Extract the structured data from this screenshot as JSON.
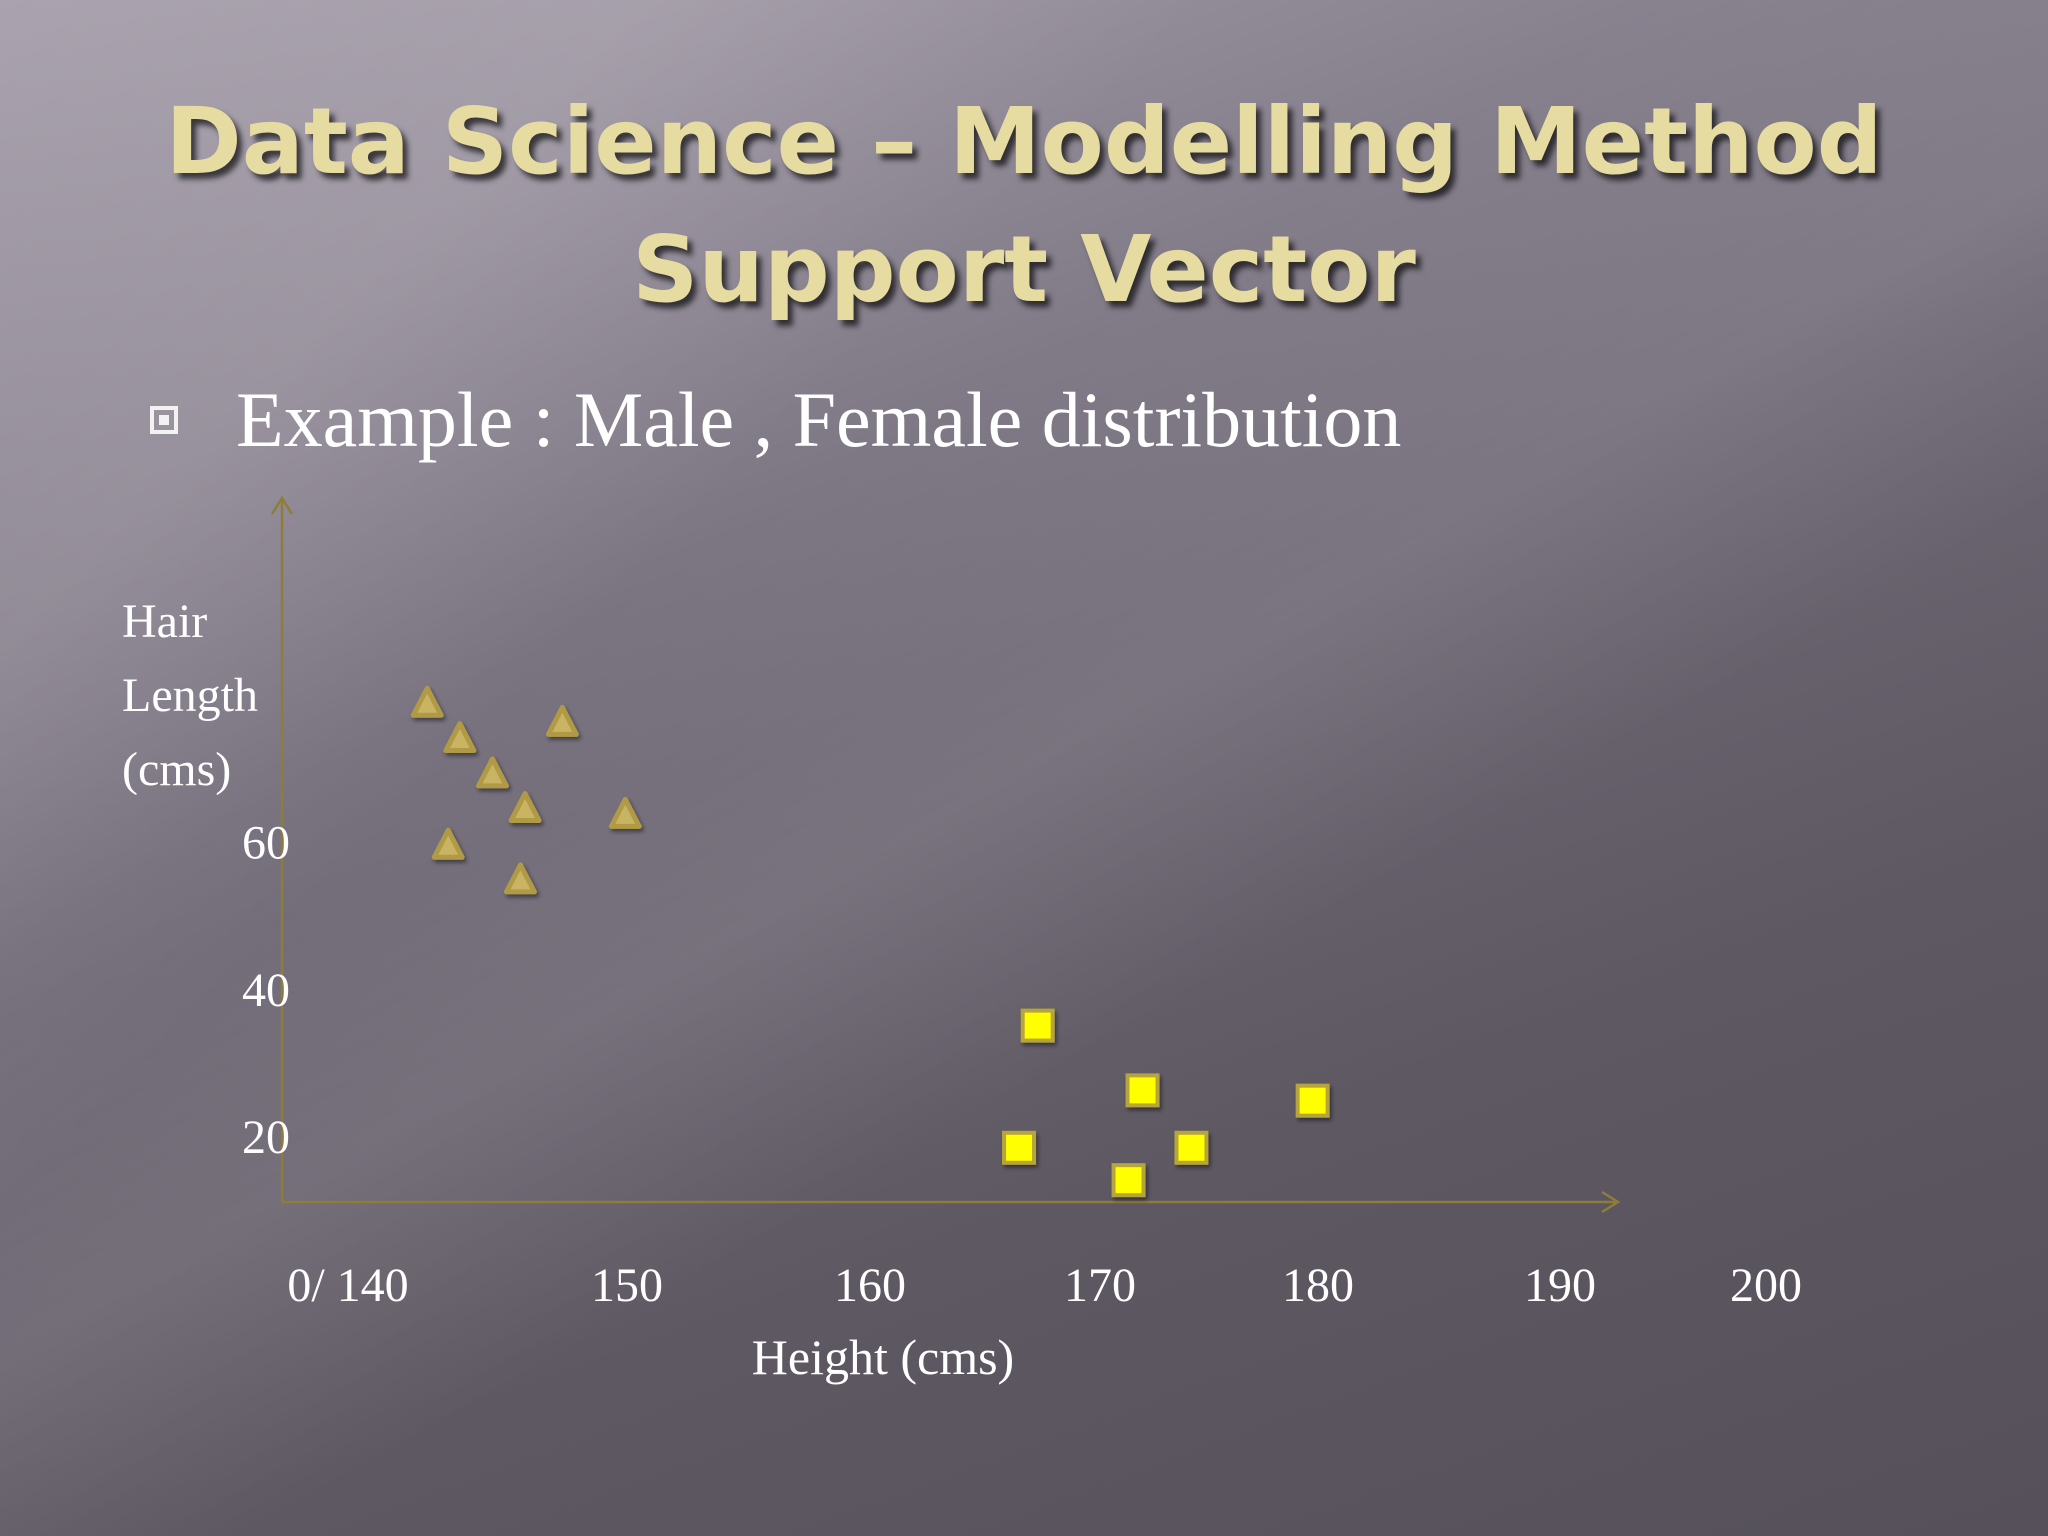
{
  "slide": {
    "title_line1": "Data Science – Modelling Method",
    "title_line2": "Support Vector",
    "bullet_text": "Example : Male , Female distribution"
  },
  "colors": {
    "female_marker": "#b09a45",
    "male_marker": "#ffff00",
    "axis": "#8c7e3a"
  },
  "chart_data": {
    "type": "scatter",
    "title": "",
    "xlabel": "Height (cms)",
    "ylabel_lines": [
      "Hair",
      "Length",
      "(cms)"
    ],
    "x_tick_labels": [
      "0/ 140",
      "150",
      "160",
      "170",
      "180",
      "190",
      "200"
    ],
    "y_tick_labels": [
      "20",
      "40",
      "60"
    ],
    "x_ticks": [
      140,
      150,
      160,
      170,
      180,
      190,
      200
    ],
    "y_ticks": [
      20,
      40,
      60
    ],
    "series": [
      {
        "marker": "triangle",
        "points": [
          {
            "x": 143.4,
            "y": 78.8
          },
          {
            "x": 144.8,
            "y": 74.0
          },
          {
            "x": 146.2,
            "y": 69.2
          },
          {
            "x": 147.6,
            "y": 64.5
          },
          {
            "x": 144.3,
            "y": 59.5
          },
          {
            "x": 147.4,
            "y": 54.8
          },
          {
            "x": 149.2,
            "y": 76.2
          },
          {
            "x": 151.9,
            "y": 63.7
          }
        ]
      },
      {
        "marker": "square",
        "points": [
          {
            "x": 169.6,
            "y": 35.0
          },
          {
            "x": 168.8,
            "y": 18.4
          },
          {
            "x": 174.1,
            "y": 26.2
          },
          {
            "x": 173.5,
            "y": 14.0
          },
          {
            "x": 176.2,
            "y": 18.4
          },
          {
            "x": 181.4,
            "y": 24.8
          }
        ]
      }
    ]
  }
}
